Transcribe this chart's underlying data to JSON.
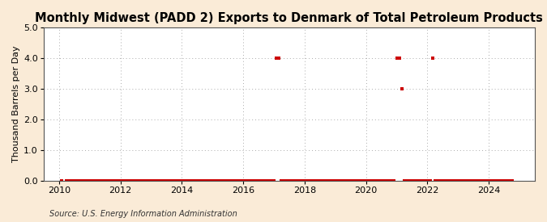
{
  "title": "Monthly Midwest (PADD 2) Exports to Denmark of Total Petroleum Products",
  "ylabel": "Thousand Barrels per Day",
  "source": "Source: U.S. Energy Information Administration",
  "background_color": "#faebd7",
  "plot_background_color": "#ffffff",
  "line_color": "#cc0000",
  "marker": "s",
  "marker_size": 3,
  "xlim_left": 2009.5,
  "xlim_right": 2025.5,
  "ylim_bottom": 0.0,
  "ylim_top": 5.0,
  "yticks": [
    0.0,
    1.0,
    2.0,
    3.0,
    4.0,
    5.0
  ],
  "xticks": [
    2010,
    2012,
    2014,
    2016,
    2018,
    2020,
    2022,
    2024
  ],
  "grid_color": "#aaaaaa",
  "title_fontsize": 10.5,
  "axis_fontsize": 8,
  "tick_fontsize": 8,
  "data_points": [
    [
      2010.083,
      0.0
    ],
    [
      2010.25,
      0.0
    ],
    [
      2010.333,
      0.0
    ],
    [
      2010.417,
      0.0
    ],
    [
      2010.5,
      0.0
    ],
    [
      2010.583,
      0.0
    ],
    [
      2010.667,
      0.0
    ],
    [
      2010.75,
      0.0
    ],
    [
      2010.833,
      0.0
    ],
    [
      2010.917,
      0.0
    ],
    [
      2011.0,
      0.0
    ],
    [
      2011.083,
      0.0
    ],
    [
      2011.167,
      0.0
    ],
    [
      2011.25,
      0.0
    ],
    [
      2011.333,
      0.0
    ],
    [
      2011.417,
      0.0
    ],
    [
      2011.5,
      0.0
    ],
    [
      2011.583,
      0.0
    ],
    [
      2011.667,
      0.0
    ],
    [
      2011.75,
      0.0
    ],
    [
      2011.833,
      0.0
    ],
    [
      2011.917,
      0.0
    ],
    [
      2012.0,
      0.0
    ],
    [
      2012.083,
      0.0
    ],
    [
      2012.167,
      0.0
    ],
    [
      2012.25,
      0.0
    ],
    [
      2012.333,
      0.0
    ],
    [
      2012.417,
      0.0
    ],
    [
      2012.5,
      0.0
    ],
    [
      2012.583,
      0.0
    ],
    [
      2012.667,
      0.0
    ],
    [
      2012.75,
      0.0
    ],
    [
      2012.833,
      0.0
    ],
    [
      2012.917,
      0.0
    ],
    [
      2013.0,
      0.0
    ],
    [
      2013.083,
      0.0
    ],
    [
      2013.167,
      0.0
    ],
    [
      2013.25,
      0.0
    ],
    [
      2013.333,
      0.0
    ],
    [
      2013.417,
      0.0
    ],
    [
      2013.5,
      0.0
    ],
    [
      2013.583,
      0.0
    ],
    [
      2013.667,
      0.0
    ],
    [
      2013.75,
      0.0
    ],
    [
      2013.833,
      0.0
    ],
    [
      2013.917,
      0.0
    ],
    [
      2014.0,
      0.0
    ],
    [
      2014.083,
      0.0
    ],
    [
      2014.167,
      0.0
    ],
    [
      2014.25,
      0.0
    ],
    [
      2014.333,
      0.0
    ],
    [
      2014.417,
      0.0
    ],
    [
      2014.5,
      0.0
    ],
    [
      2014.583,
      0.0
    ],
    [
      2014.667,
      0.0
    ],
    [
      2014.75,
      0.0
    ],
    [
      2014.833,
      0.0
    ],
    [
      2014.917,
      0.0
    ],
    [
      2015.0,
      0.0
    ],
    [
      2015.083,
      0.0
    ],
    [
      2015.167,
      0.0
    ],
    [
      2015.25,
      0.0
    ],
    [
      2015.333,
      0.0
    ],
    [
      2015.417,
      0.0
    ],
    [
      2015.5,
      0.0
    ],
    [
      2015.583,
      0.0
    ],
    [
      2015.667,
      0.0
    ],
    [
      2015.75,
      0.0
    ],
    [
      2015.833,
      0.0
    ],
    [
      2015.917,
      0.0
    ],
    [
      2016.0,
      0.0
    ],
    [
      2016.083,
      0.0
    ],
    [
      2016.167,
      0.0
    ],
    [
      2016.25,
      0.0
    ],
    [
      2016.333,
      0.0
    ],
    [
      2016.417,
      0.0
    ],
    [
      2016.5,
      0.0
    ],
    [
      2016.583,
      0.0
    ],
    [
      2016.667,
      0.0
    ],
    [
      2016.75,
      0.0
    ],
    [
      2016.833,
      0.0
    ],
    [
      2016.917,
      0.0
    ],
    [
      2017.0,
      0.0
    ],
    [
      2017.083,
      4.0
    ],
    [
      2017.167,
      4.0
    ],
    [
      2017.25,
      0.0
    ],
    [
      2017.333,
      0.0
    ],
    [
      2017.417,
      0.0
    ],
    [
      2017.5,
      0.0
    ],
    [
      2017.583,
      0.0
    ],
    [
      2017.667,
      0.0
    ],
    [
      2017.75,
      0.0
    ],
    [
      2017.833,
      0.0
    ],
    [
      2017.917,
      0.0
    ],
    [
      2018.0,
      0.0
    ],
    [
      2018.083,
      0.0
    ],
    [
      2018.167,
      0.0
    ],
    [
      2018.25,
      0.0
    ],
    [
      2018.333,
      0.0
    ],
    [
      2018.417,
      0.0
    ],
    [
      2018.5,
      0.0
    ],
    [
      2018.583,
      0.0
    ],
    [
      2018.667,
      0.0
    ],
    [
      2018.75,
      0.0
    ],
    [
      2018.833,
      0.0
    ],
    [
      2018.917,
      0.0
    ],
    [
      2019.0,
      0.0
    ],
    [
      2019.083,
      0.0
    ],
    [
      2019.167,
      0.0
    ],
    [
      2019.25,
      0.0
    ],
    [
      2019.333,
      0.0
    ],
    [
      2019.417,
      0.0
    ],
    [
      2019.5,
      0.0
    ],
    [
      2019.583,
      0.0
    ],
    [
      2019.667,
      0.0
    ],
    [
      2019.75,
      0.0
    ],
    [
      2019.833,
      0.0
    ],
    [
      2019.917,
      0.0
    ],
    [
      2020.0,
      0.0
    ],
    [
      2020.083,
      0.0
    ],
    [
      2020.167,
      0.0
    ],
    [
      2020.25,
      0.0
    ],
    [
      2020.333,
      0.0
    ],
    [
      2020.417,
      0.0
    ],
    [
      2020.5,
      0.0
    ],
    [
      2020.583,
      0.0
    ],
    [
      2020.667,
      0.0
    ],
    [
      2020.75,
      0.0
    ],
    [
      2020.833,
      0.0
    ],
    [
      2020.917,
      0.0
    ],
    [
      2021.0,
      4.0
    ],
    [
      2021.083,
      4.0
    ],
    [
      2021.167,
      3.0
    ],
    [
      2021.25,
      0.0
    ],
    [
      2021.333,
      0.0
    ],
    [
      2021.417,
      0.0
    ],
    [
      2021.5,
      0.0
    ],
    [
      2021.583,
      0.0
    ],
    [
      2021.667,
      0.0
    ],
    [
      2021.75,
      0.0
    ],
    [
      2021.833,
      0.0
    ],
    [
      2021.917,
      0.0
    ],
    [
      2022.0,
      0.0
    ],
    [
      2022.083,
      0.0
    ],
    [
      2022.167,
      4.0
    ],
    [
      2022.25,
      0.0
    ],
    [
      2022.333,
      0.0
    ],
    [
      2022.417,
      0.0
    ],
    [
      2022.5,
      0.0
    ],
    [
      2022.583,
      0.0
    ],
    [
      2022.667,
      0.0
    ],
    [
      2022.75,
      0.0
    ],
    [
      2022.833,
      0.0
    ],
    [
      2022.917,
      0.0
    ],
    [
      2023.0,
      0.0
    ],
    [
      2023.083,
      0.0
    ],
    [
      2023.167,
      0.0
    ],
    [
      2023.25,
      0.0
    ],
    [
      2023.333,
      0.0
    ],
    [
      2023.417,
      0.0
    ],
    [
      2023.5,
      0.0
    ],
    [
      2023.583,
      0.0
    ],
    [
      2023.667,
      0.0
    ],
    [
      2023.75,
      0.0
    ],
    [
      2023.833,
      0.0
    ],
    [
      2023.917,
      0.0
    ],
    [
      2024.0,
      0.0
    ],
    [
      2024.083,
      0.0
    ],
    [
      2024.167,
      0.0
    ],
    [
      2024.25,
      0.0
    ],
    [
      2024.333,
      0.0
    ],
    [
      2024.417,
      0.0
    ],
    [
      2024.5,
      0.0
    ],
    [
      2024.583,
      0.0
    ],
    [
      2024.667,
      0.0
    ],
    [
      2024.75,
      0.0
    ]
  ]
}
